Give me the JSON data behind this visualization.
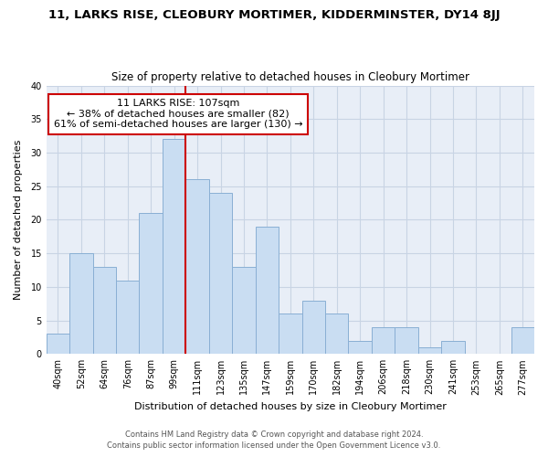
{
  "title": "11, LARKS RISE, CLEOBURY MORTIMER, KIDDERMINSTER, DY14 8JJ",
  "subtitle": "Size of property relative to detached houses in Cleobury Mortimer",
  "xlabel": "Distribution of detached houses by size in Cleobury Mortimer",
  "ylabel": "Number of detached properties",
  "categories": [
    "40sqm",
    "52sqm",
    "64sqm",
    "76sqm",
    "87sqm",
    "99sqm",
    "111sqm",
    "123sqm",
    "135sqm",
    "147sqm",
    "159sqm",
    "170sqm",
    "182sqm",
    "194sqm",
    "206sqm",
    "218sqm",
    "230sqm",
    "241sqm",
    "253sqm",
    "265sqm",
    "277sqm"
  ],
  "values": [
    3,
    15,
    13,
    11,
    21,
    32,
    26,
    24,
    13,
    19,
    6,
    8,
    6,
    2,
    4,
    4,
    1,
    2,
    0,
    0,
    4
  ],
  "bar_color": "#c9ddf2",
  "bar_edge_color": "#89afd4",
  "highlight_line_color": "#cc0000",
  "annotation_text_line1": "11 LARKS RISE: 107sqm",
  "annotation_text_line2": "← 38% of detached houses are smaller (82)",
  "annotation_text_line3": "61% of semi-detached houses are larger (130) →",
  "annotation_box_color": "#cc0000",
  "ylim": [
    0,
    40
  ],
  "yticks": [
    0,
    5,
    10,
    15,
    20,
    25,
    30,
    35,
    40
  ],
  "footnote1": "Contains HM Land Registry data © Crown copyright and database right 2024.",
  "footnote2": "Contains public sector information licensed under the Open Government Licence v3.0.",
  "bg_color": "#ffffff",
  "plot_bg_color": "#e8eef7",
  "grid_color": "#c8d4e4",
  "title_fontsize": 9.5,
  "subtitle_fontsize": 8.5,
  "axis_fontsize": 8,
  "tick_fontsize": 7,
  "annot_fontsize": 8
}
